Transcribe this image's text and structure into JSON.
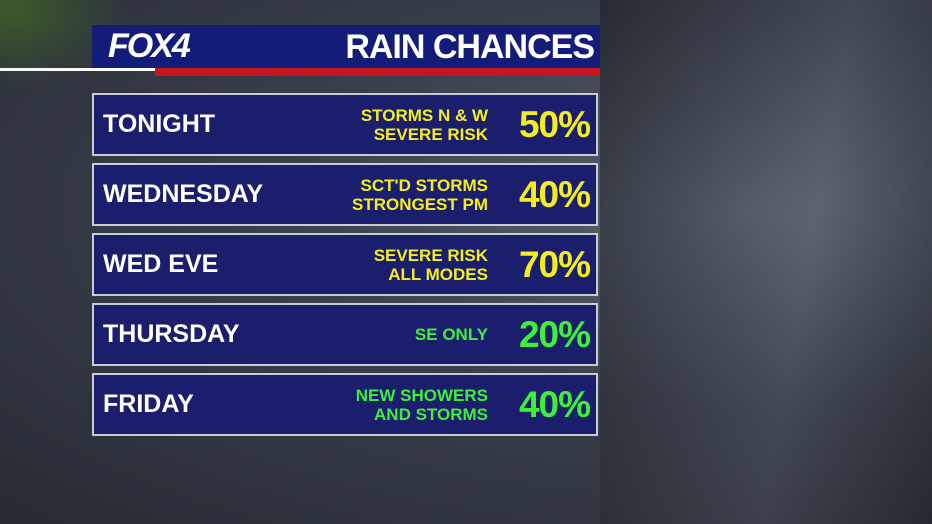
{
  "header": {
    "logo": "FOX4",
    "title": "RAIN CHANCES"
  },
  "rows": [
    {
      "label": "TONIGHT",
      "notes": [
        "STORMS N & W",
        "SEVERE RISK"
      ],
      "chance": "50%",
      "color": "#f5ee1e"
    },
    {
      "label": "WEDNESDAY",
      "notes": [
        "SCT'D STORMS",
        "STRONGEST PM"
      ],
      "chance": "40%",
      "color": "#f5ee1e"
    },
    {
      "label": "WED EVE",
      "notes": [
        "SEVERE RISK",
        "ALL MODES"
      ],
      "chance": "70%",
      "color": "#f5ee1e"
    },
    {
      "label": "THURSDAY",
      "notes": [
        "SE ONLY"
      ],
      "chance": "20%",
      "color": "#3ef03a"
    },
    {
      "label": "FRIDAY",
      "notes": [
        "NEW SHOWERS",
        "AND STORMS"
      ],
      "chance": "40%",
      "color": "#3ef03a"
    }
  ]
}
